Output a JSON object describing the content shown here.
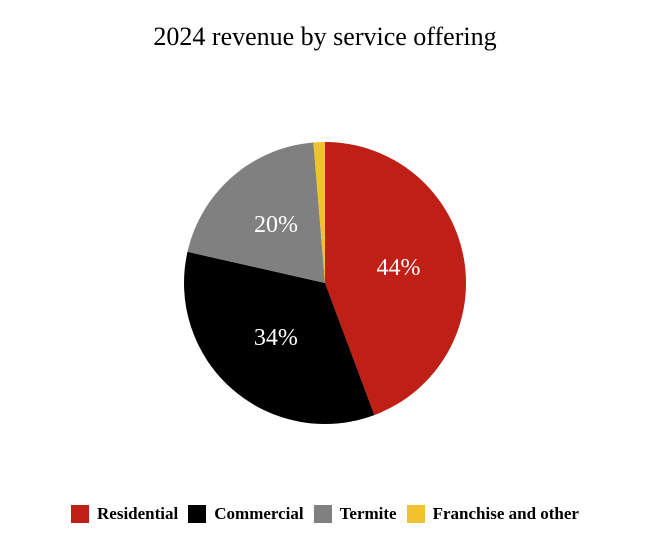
{
  "chart_data": {
    "type": "pie",
    "title": "2024 revenue by service offering",
    "categories": [
      "Residential",
      "Commercial",
      "Termite",
      "Franchise and other"
    ],
    "values": [
      44,
      34,
      20,
      1.3
    ],
    "labels": [
      "44%",
      "34%",
      "20%",
      ""
    ],
    "colors": [
      "#C01F16",
      "#000000",
      "#808080",
      "#F2C12E"
    ],
    "label_color": "#ffffff",
    "start_angle_deg": 0,
    "direction": "clockwise",
    "legend_position": "bottom"
  }
}
